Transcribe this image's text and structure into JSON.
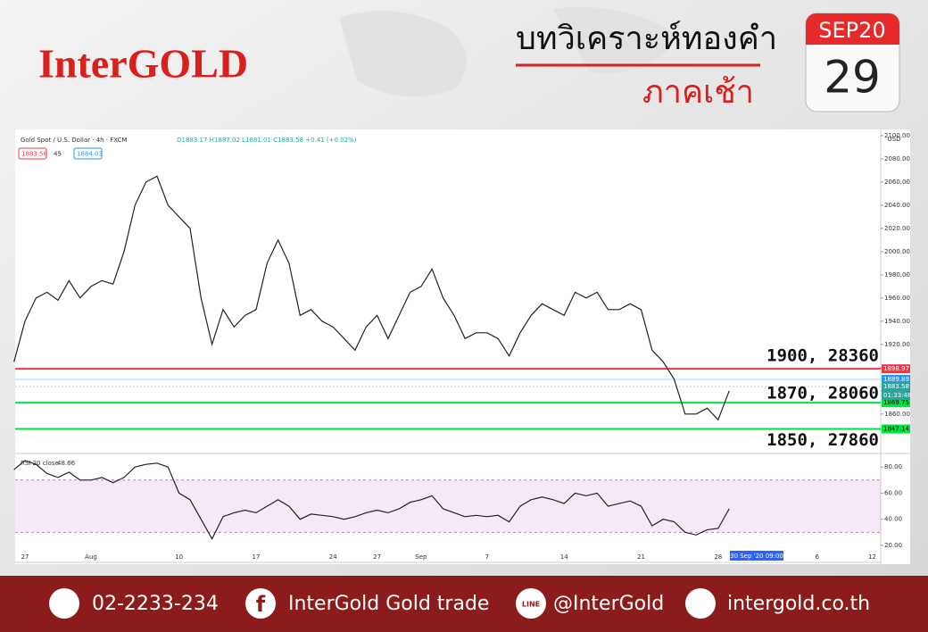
{
  "header": {
    "brand": "InterGOLD",
    "title": "บทวิเคราะห์ทองคำ",
    "subtitle": "ภาคเช้า",
    "month": "SEP20",
    "day": "29"
  },
  "chart_data": [
    {
      "type": "line",
      "title": "Gold Spot / U.S. Dollar · 4h · FXCM",
      "ohlc": "O1883.17 H1887.02 L1881.01 C1883.58 +0.41 (+0.02%)",
      "badges": [
        "1883.58",
        "45",
        "1884.03"
      ],
      "currency": "USD",
      "color": "#222222",
      "categories": [
        null,
        "27",
        null,
        null,
        null,
        null,
        null,
        "Aug",
        null,
        null,
        null,
        null,
        null,
        null,
        null,
        "10",
        null,
        null,
        null,
        null,
        null,
        null,
        "17",
        null,
        null,
        null,
        null,
        null,
        null,
        "24",
        null,
        null,
        null,
        "27",
        null,
        null,
        null,
        "Sep",
        null,
        null,
        null,
        null,
        null,
        "7",
        null,
        null,
        null,
        null,
        null,
        null,
        "14",
        null,
        null,
        null,
        null,
        null,
        null,
        "21",
        null,
        null,
        null,
        null,
        null,
        null,
        "28",
        null,
        null,
        null,
        null,
        null,
        null,
        null,
        null,
        "6",
        null,
        null,
        null,
        null,
        "12"
      ],
      "values": [
        1905,
        1940,
        1960,
        1965,
        1958,
        1975,
        1960,
        1970,
        1975,
        1972,
        2000,
        2040,
        2060,
        2065,
        2040,
        2030,
        2020,
        1960,
        1920,
        1950,
        1935,
        1945,
        1950,
        1990,
        2010,
        1990,
        1945,
        1950,
        1940,
        1935,
        1925,
        1915,
        1935,
        1945,
        1925,
        1945,
        1965,
        1970,
        1985,
        1960,
        1945,
        1925,
        1930,
        1930,
        1925,
        1910,
        1930,
        1945,
        1955,
        1950,
        1945,
        1965,
        1960,
        1965,
        1950,
        1950,
        1955,
        1950,
        1915,
        1905,
        1890,
        1860,
        1860,
        1865,
        1855,
        1880,
        null,
        null,
        null,
        null,
        null,
        null,
        null,
        null,
        null,
        null,
        null,
        null,
        null
      ],
      "ylim": [
        1826,
        2103
      ],
      "yticks": [
        {
          "value": 1860,
          "label": "1860.00"
        },
        {
          "value": 1880,
          "label": "1880.00"
        },
        {
          "value": 1900,
          "label": "1900.00"
        },
        {
          "value": 1920,
          "label": "1920.00"
        },
        {
          "value": 1940,
          "label": "1940.00"
        },
        {
          "value": 1960,
          "label": "1960.00"
        },
        {
          "value": 1980,
          "label": "1980.00"
        },
        {
          "value": 2000,
          "label": "2000.00"
        },
        {
          "value": 2020,
          "label": "2020.00"
        },
        {
          "value": 2040,
          "label": "2040.00"
        },
        {
          "value": 2060,
          "label": "2060.00"
        },
        {
          "value": 2080,
          "label": "2080.00"
        },
        {
          "value": 2100,
          "label": "2100.00"
        }
      ],
      "levels": [
        {
          "value": 1898.97,
          "color": "#f23645",
          "annotation": "1900, 28360"
        },
        {
          "value": 1869.75,
          "color": "#00e640",
          "annotation": "1870, 28060"
        },
        {
          "value": 1847.14,
          "color": "#00e640",
          "annotation": "1850, 27860"
        }
      ],
      "price_tags": [
        {
          "value": 1889.89,
          "color": "#2196f3"
        },
        {
          "value": 1883.58,
          "color": "#26a69a",
          "countdown": "01:33:48"
        }
      ],
      "crosshair_label": "30 Sep '20  09:00"
    },
    {
      "type": "line",
      "title": "RSI 20 close",
      "last": "48.66",
      "color": "#222222",
      "values": [
        78,
        85,
        82,
        75,
        72,
        76,
        70,
        70,
        72,
        68,
        72,
        80,
        82,
        83,
        80,
        60,
        55,
        40,
        25,
        42,
        45,
        47,
        45,
        50,
        55,
        50,
        40,
        44,
        43,
        42,
        40,
        42,
        45,
        47,
        45,
        48,
        53,
        55,
        58,
        48,
        45,
        42,
        43,
        42,
        43,
        38,
        50,
        55,
        57,
        55,
        52,
        60,
        58,
        60,
        50,
        52,
        54,
        50,
        35,
        40,
        38,
        30,
        28,
        32,
        33,
        48,
        null,
        null,
        null,
        null,
        null,
        null,
        null,
        null,
        null,
        null,
        null,
        null,
        null
      ],
      "ylim": [
        7,
        89
      ],
      "band": [
        30,
        70
      ],
      "yticks": [
        {
          "value": 20,
          "label": "20.00"
        },
        {
          "value": 40,
          "label": "40.00"
        },
        {
          "value": 60,
          "label": "60.00"
        },
        {
          "value": 80,
          "label": "80.00"
        }
      ]
    }
  ],
  "footer": {
    "phone": "02-2233-234",
    "facebook": "InterGold Gold trade",
    "line_icon": "LINE",
    "line": "@InterGold",
    "web": "intergold.co.th"
  }
}
